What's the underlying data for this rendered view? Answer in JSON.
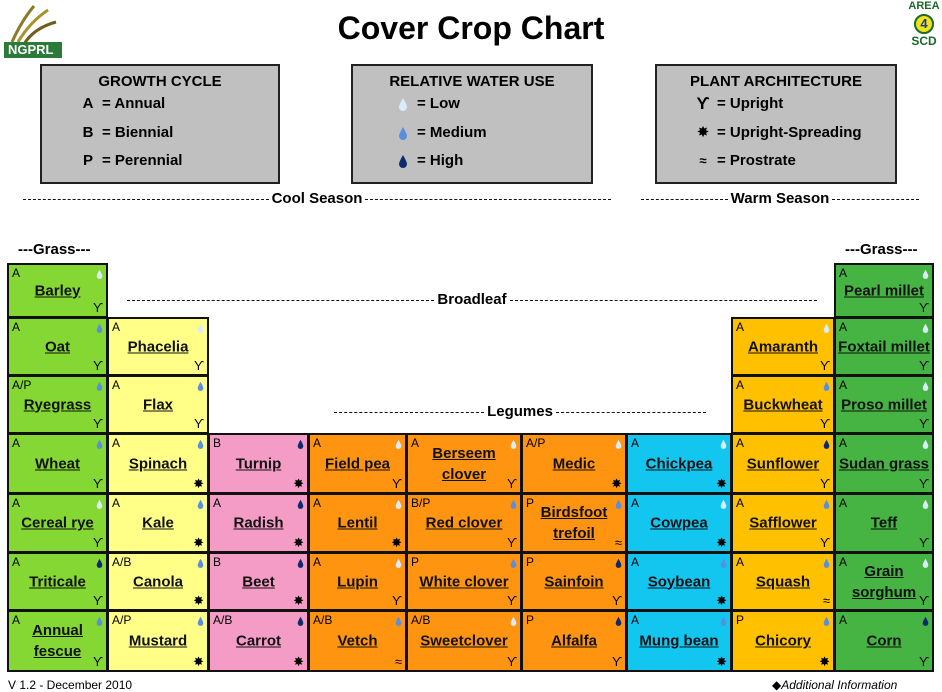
{
  "title": "Cover Crop Chart",
  "logos": {
    "left": "NGPRL",
    "right": [
      "AREA",
      "4",
      "SCD"
    ]
  },
  "colors": {
    "grass": "#85d833",
    "broadleaf": "#ffff88",
    "brassica": "#f59cc6",
    "legume": "#ff9410",
    "chickpea_group": "#12c6f0",
    "warm_broadleaf": "#ffc000",
    "warm_grass": "#45b443",
    "legend_bg": "#c0c0c0",
    "water_low": "#dcebfa",
    "water_medium": "#5a8ede",
    "water_high": "#0e2a6e"
  },
  "legends": [
    {
      "title": "GROWTH CYCLE",
      "items": [
        {
          "sym": "A",
          "text": "= Annual"
        },
        {
          "sym": "B",
          "text": "= Biennial"
        },
        {
          "sym": "P",
          "text": "= Perennial"
        }
      ]
    },
    {
      "title": "RELATIVE WATER USE",
      "items": [
        {
          "sym": "drop-low",
          "text": "= Low"
        },
        {
          "sym": "drop-medium",
          "text": "= Medium"
        },
        {
          "sym": "drop-high",
          "text": "= High"
        }
      ]
    },
    {
      "title": "PLANT ARCHITECTURE",
      "items": [
        {
          "sym": "upright-icon",
          "text": "= Upright"
        },
        {
          "sym": "upright-spreading-icon",
          "text": "= Upright-Spreading"
        },
        {
          "sym": "prostrate-icon",
          "text": "= Prostrate"
        }
      ]
    }
  ],
  "sections": {
    "cool": "Cool Season",
    "warm": "Warm Season",
    "grass_left": "---Grass---",
    "grass_right": "---Grass---",
    "broadleaf": "Broadleaf",
    "legumes": "Legumes"
  },
  "crops": [
    {
      "name": "Barley",
      "cycle": "A",
      "water": "low",
      "arch": "upright",
      "group": "grass",
      "col": 0,
      "row": 0
    },
    {
      "name": "Oat",
      "cycle": "A",
      "water": "medium",
      "arch": "upright",
      "group": "grass",
      "col": 0,
      "row": 1
    },
    {
      "name": "Ryegrass",
      "cycle": "A/P",
      "water": "medium",
      "arch": "upright",
      "group": "grass",
      "col": 0,
      "row": 2
    },
    {
      "name": "Wheat",
      "cycle": "A",
      "water": "medium",
      "arch": "upright",
      "group": "grass",
      "col": 0,
      "row": 3
    },
    {
      "name": "Cereal rye",
      "cycle": "A",
      "water": "low",
      "arch": "upright",
      "group": "grass",
      "col": 0,
      "row": 4
    },
    {
      "name": "Triticale",
      "cycle": "A",
      "water": "high",
      "arch": "upright",
      "group": "grass",
      "col": 0,
      "row": 5
    },
    {
      "name": "Annual fescue",
      "cycle": "A",
      "water": "medium",
      "arch": "upright",
      "group": "grass",
      "col": 0,
      "row": 6
    },
    {
      "name": "Phacelia",
      "cycle": "A",
      "water": "low",
      "arch": "upright",
      "group": "broadleaf",
      "col": 1,
      "row": 1
    },
    {
      "name": "Flax",
      "cycle": "A",
      "water": "medium",
      "arch": "upright",
      "group": "broadleaf",
      "col": 1,
      "row": 2
    },
    {
      "name": "Spinach",
      "cycle": "A",
      "water": "medium",
      "arch": "upright-spreading",
      "group": "broadleaf",
      "col": 1,
      "row": 3
    },
    {
      "name": "Kale",
      "cycle": "A",
      "water": "medium",
      "arch": "upright-spreading",
      "group": "broadleaf",
      "col": 1,
      "row": 4
    },
    {
      "name": "Canola",
      "cycle": "A/B",
      "water": "medium",
      "arch": "upright-spreading",
      "group": "broadleaf",
      "col": 1,
      "row": 5
    },
    {
      "name": "Mustard",
      "cycle": "A/P",
      "water": "medium",
      "arch": "upright-spreading",
      "group": "broadleaf",
      "col": 1,
      "row": 6
    },
    {
      "name": "Turnip",
      "cycle": "B",
      "water": "high",
      "arch": "upright-spreading",
      "group": "brassica",
      "col": 2,
      "row": 3
    },
    {
      "name": "Radish",
      "cycle": "A",
      "water": "high",
      "arch": "upright-spreading",
      "group": "brassica",
      "col": 2,
      "row": 4
    },
    {
      "name": "Beet",
      "cycle": "B",
      "water": "high",
      "arch": "upright-spreading",
      "group": "brassica",
      "col": 2,
      "row": 5
    },
    {
      "name": "Carrot",
      "cycle": "A/B",
      "water": "high",
      "arch": "upright-spreading",
      "group": "brassica",
      "col": 2,
      "row": 6
    },
    {
      "name": "Field pea",
      "cycle": "A",
      "water": "low",
      "arch": "upright",
      "group": "legume",
      "col": 3,
      "row": 3
    },
    {
      "name": "Lentil",
      "cycle": "A",
      "water": "low",
      "arch": "upright-spreading",
      "group": "legume",
      "col": 3,
      "row": 4
    },
    {
      "name": "Lupin",
      "cycle": "A",
      "water": "low",
      "arch": "upright",
      "group": "legume",
      "col": 3,
      "row": 5
    },
    {
      "name": "Vetch",
      "cycle": "A/B",
      "water": "medium",
      "arch": "prostrate",
      "group": "legume",
      "col": 3,
      "row": 6
    },
    {
      "name": "Berseem clover",
      "cycle": "A",
      "water": "low",
      "arch": "upright",
      "group": "legume",
      "col": 4,
      "row": 3
    },
    {
      "name": "Red clover",
      "cycle": "B/P",
      "water": "medium",
      "arch": "upright",
      "group": "legume",
      "col": 4,
      "row": 4
    },
    {
      "name": "White clover",
      "cycle": "P",
      "water": "medium",
      "arch": "upright",
      "group": "legume",
      "col": 4,
      "row": 5
    },
    {
      "name": "Sweetclover",
      "cycle": "A/B",
      "water": "low",
      "arch": "upright",
      "group": "legume",
      "col": 4,
      "row": 6
    },
    {
      "name": "Medic",
      "cycle": "A/P",
      "water": "low",
      "arch": "upright-spreading",
      "group": "legume",
      "col": 5,
      "row": 3
    },
    {
      "name": "Birdsfoot trefoil",
      "cycle": "P",
      "water": "medium",
      "arch": "prostrate",
      "group": "legume",
      "col": 5,
      "row": 4
    },
    {
      "name": "Sainfoin",
      "cycle": "P",
      "water": "high",
      "arch": "upright",
      "group": "legume",
      "col": 5,
      "row": 5
    },
    {
      "name": "Alfalfa",
      "cycle": "P",
      "water": "high",
      "arch": "upright",
      "group": "legume",
      "col": 5,
      "row": 6
    },
    {
      "name": "Chickpea",
      "cycle": "A",
      "water": "low",
      "arch": "upright-spreading",
      "group": "chickpea_group",
      "col": 6,
      "row": 3
    },
    {
      "name": "Cowpea",
      "cycle": "A",
      "water": "low",
      "arch": "upright-spreading",
      "group": "chickpea_group",
      "col": 6,
      "row": 4
    },
    {
      "name": "Soybean",
      "cycle": "A",
      "water": "medium",
      "arch": "upright-spreading",
      "group": "chickpea_group",
      "col": 6,
      "row": 5
    },
    {
      "name": "Mung bean",
      "cycle": "A",
      "water": "medium",
      "arch": "upright-spreading",
      "group": "chickpea_group",
      "col": 6,
      "row": 6
    },
    {
      "name": "Amaranth",
      "cycle": "A",
      "water": "low",
      "arch": "upright",
      "group": "warm_broadleaf",
      "col": 7,
      "row": 1
    },
    {
      "name": "Buckwheat",
      "cycle": "A",
      "water": "medium",
      "arch": "upright",
      "group": "warm_broadleaf",
      "col": 7,
      "row": 2
    },
    {
      "name": "Sunflower",
      "cycle": "A",
      "water": "high",
      "arch": "upright",
      "group": "warm_broadleaf",
      "col": 7,
      "row": 3
    },
    {
      "name": "Safflower",
      "cycle": "A",
      "water": "medium",
      "arch": "upright",
      "group": "warm_broadleaf",
      "col": 7,
      "row": 4
    },
    {
      "name": "Squash",
      "cycle": "A",
      "water": "medium",
      "arch": "prostrate",
      "group": "warm_broadleaf",
      "col": 7,
      "row": 5
    },
    {
      "name": "Chicory",
      "cycle": "P",
      "water": "medium",
      "arch": "upright-spreading",
      "group": "warm_broadleaf",
      "col": 7,
      "row": 6
    },
    {
      "name": "Pearl millet",
      "cycle": "A",
      "water": "low",
      "arch": "upright",
      "group": "warm_grass",
      "col": 8,
      "row": 0
    },
    {
      "name": "Foxtail millet",
      "cycle": "A",
      "water": "low",
      "arch": "upright",
      "group": "warm_grass",
      "col": 8,
      "row": 1
    },
    {
      "name": "Proso millet",
      "cycle": "A",
      "water": "low",
      "arch": "upright",
      "group": "warm_grass",
      "col": 8,
      "row": 2
    },
    {
      "name": "Sudan grass",
      "cycle": "A",
      "water": "low",
      "arch": "upright",
      "group": "warm_grass",
      "col": 8,
      "row": 3
    },
    {
      "name": "Teff",
      "cycle": "A",
      "water": "low",
      "arch": "upright",
      "group": "warm_grass",
      "col": 8,
      "row": 4
    },
    {
      "name": "Grain sorghum",
      "cycle": "A",
      "water": "low",
      "arch": "upright",
      "group": "warm_grass",
      "col": 8,
      "row": 5
    },
    {
      "name": "Corn",
      "cycle": "A",
      "water": "high",
      "arch": "upright",
      "group": "warm_grass",
      "col": 8,
      "row": 6
    }
  ],
  "footer": {
    "version": "V 1.2 - December 2010",
    "info": "Additional Information"
  }
}
